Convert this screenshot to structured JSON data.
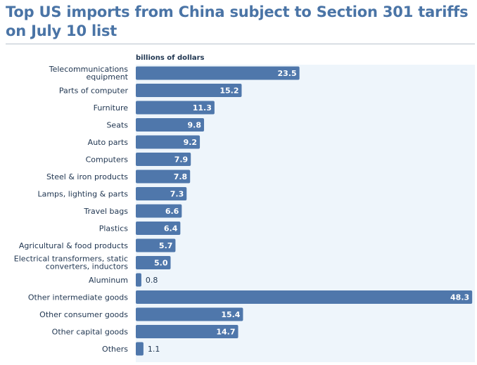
{
  "title": "Top US imports from China subject to Section 301 tariffs on July 10 list",
  "colors": {
    "title": "#4a74a6",
    "bar": "#4f77ab",
    "plot_background": "#eef5fb",
    "label": "#1f3550",
    "value_inside": "#ffffff",
    "value_outside": "#1f3550"
  },
  "chart_data": {
    "type": "bar",
    "orientation": "horizontal",
    "title": "Top US imports from China subject to Section 301 tariffs on July 10 list",
    "units_label": "billions of dollars",
    "categories": [
      "Telecommunications equipment",
      "Parts of computer",
      "Furniture",
      "Seats",
      "Auto parts",
      "Computers",
      "Steel & iron products",
      "Lamps, lighting & parts",
      "Travel bags",
      "Plastics",
      "Agricultural & food products",
      "Electrical transformers, static converters, inductors",
      "Aluminum",
      "Other intermediate goods",
      "Other consumer goods",
      "Other capital goods",
      "Others"
    ],
    "category_lines": [
      [
        "Telecommunications",
        "equipment"
      ],
      [
        "Parts of computer"
      ],
      [
        "Furniture"
      ],
      [
        "Seats"
      ],
      [
        "Auto parts"
      ],
      [
        "Computers"
      ],
      [
        "Steel & iron products"
      ],
      [
        "Lamps, lighting & parts"
      ],
      [
        "Travel bags"
      ],
      [
        "Plastics"
      ],
      [
        "Agricultural & food products"
      ],
      [
        "Electrical transformers, static",
        "converters, inductors"
      ],
      [
        "Aluminum"
      ],
      [
        "Other intermediate goods"
      ],
      [
        "Other consumer goods"
      ],
      [
        "Other capital goods"
      ],
      [
        "Others"
      ]
    ],
    "values": [
      23.5,
      15.2,
      11.3,
      9.8,
      9.2,
      7.9,
      7.8,
      7.3,
      6.6,
      6.4,
      5.7,
      5.0,
      0.8,
      48.3,
      15.4,
      14.7,
      1.1
    ],
    "value_labels": [
      "23.5",
      "15.2",
      "11.3",
      "9.8",
      "9.2",
      "7.9",
      "7.8",
      "7.3",
      "6.6",
      "6.4",
      "5.7",
      "5.0",
      "0.8",
      "48.3",
      "15.4",
      "14.7",
      "1.1"
    ],
    "xlim": [
      0,
      50
    ],
    "xlabel": "",
    "ylabel": "",
    "grid": false,
    "legend": "none"
  }
}
